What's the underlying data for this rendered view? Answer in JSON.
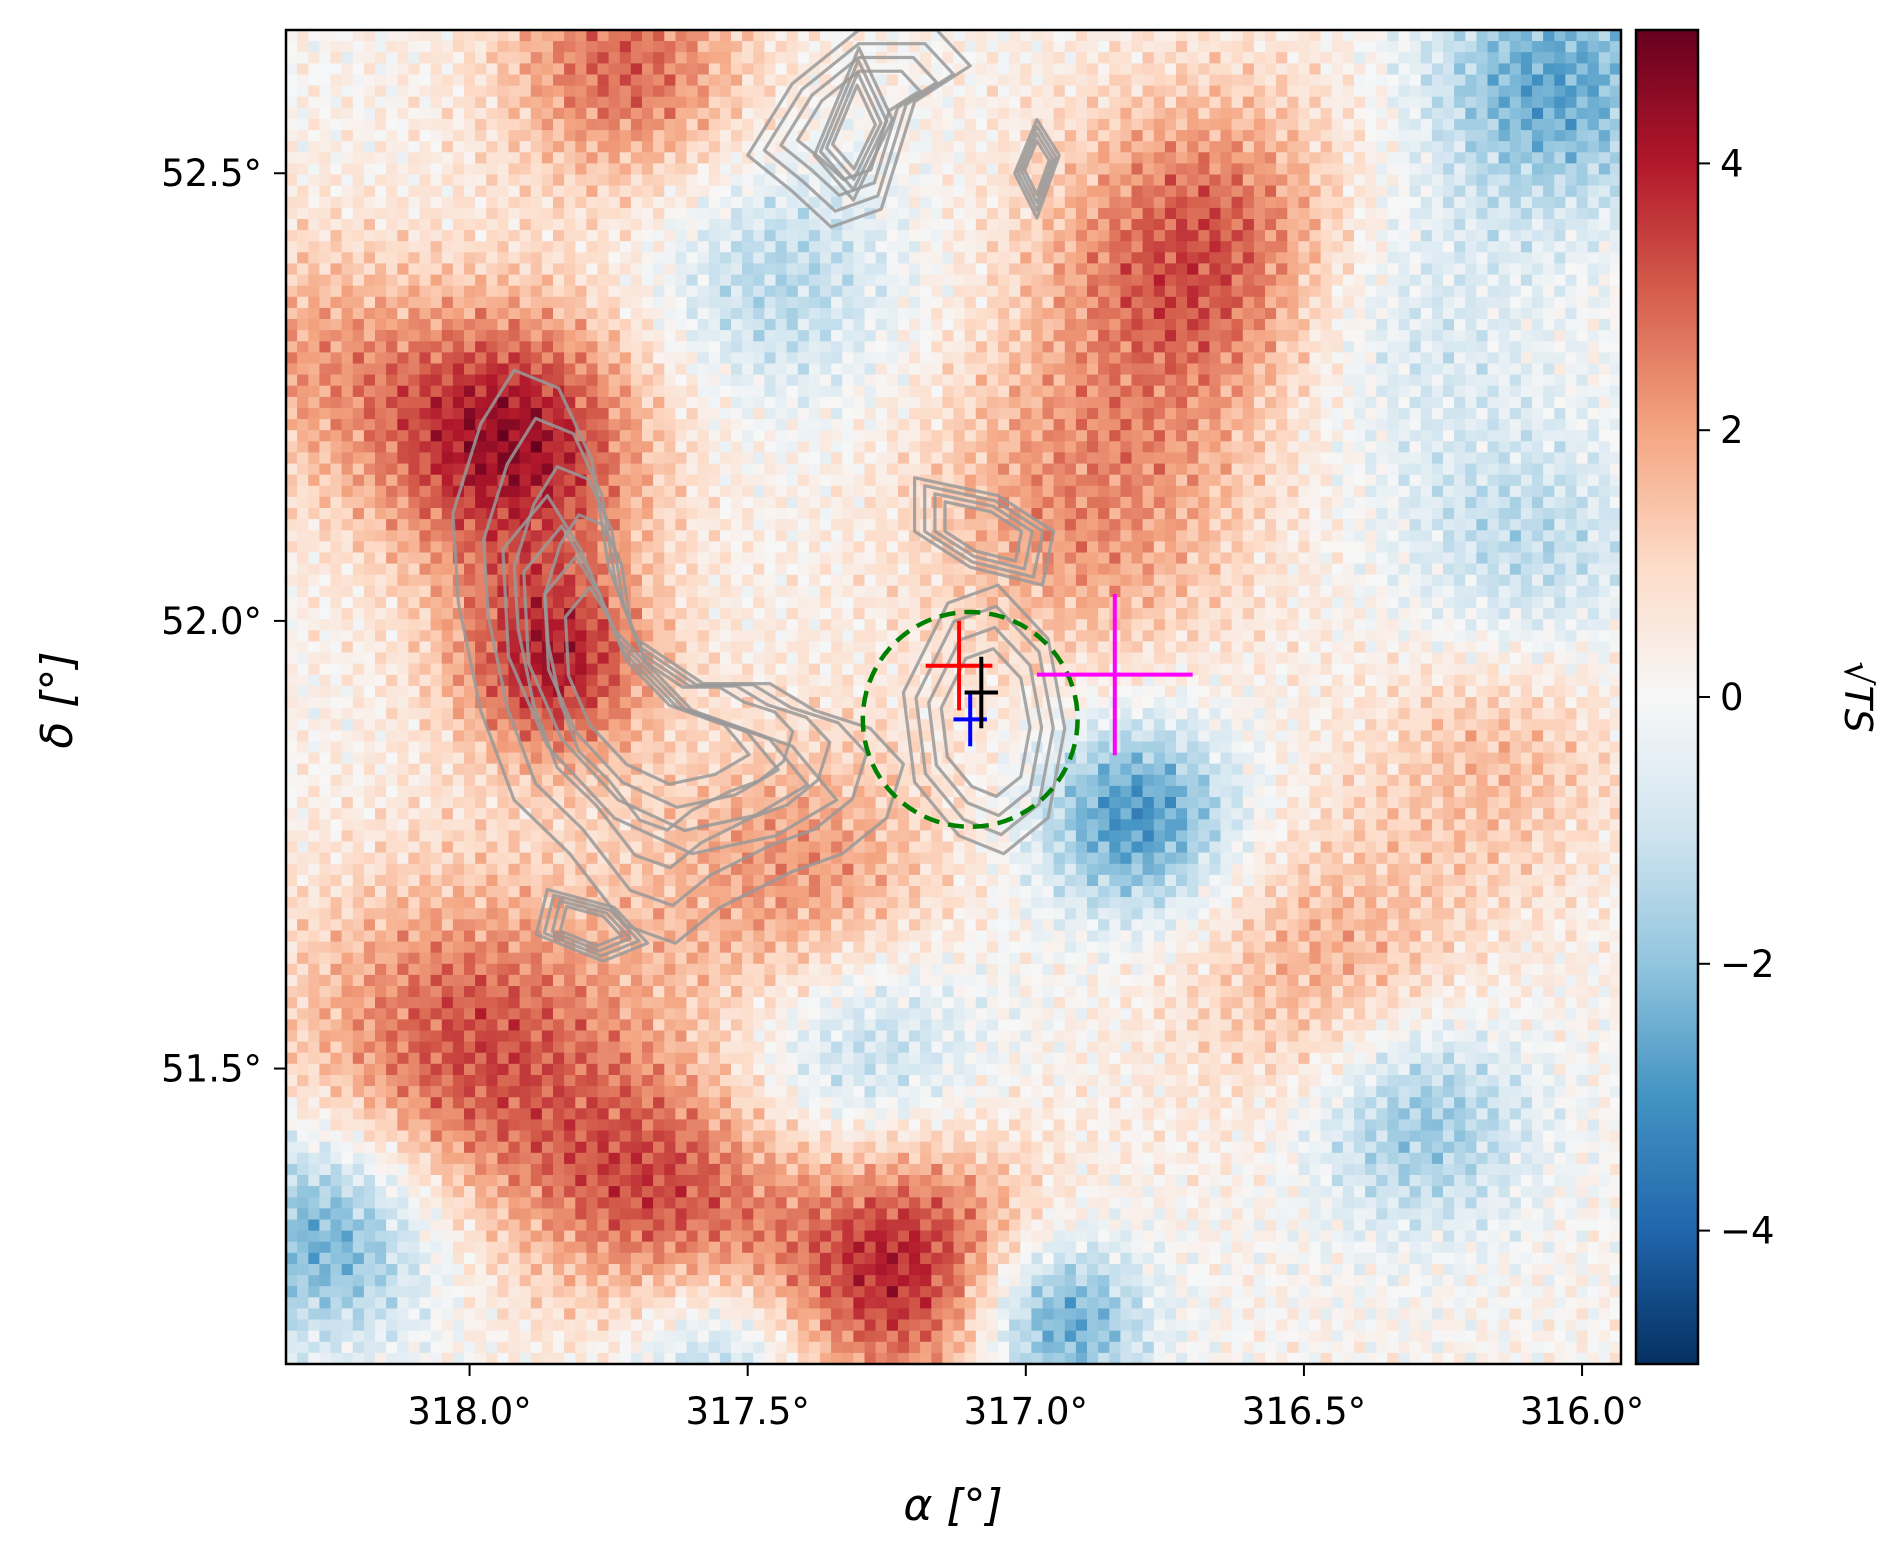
{
  "chart_data": {
    "type": "heatmap",
    "title": "",
    "xlabel": "α [°]",
    "ylabel": "δ [°]",
    "xlim": [
      318.33,
      315.93
    ],
    "ylim": [
      51.17,
      52.66
    ],
    "x_ticks": [
      318.0,
      317.5,
      317.0,
      316.5,
      316.0
    ],
    "x_tick_labels": [
      "318.0°",
      "317.5°",
      "317.0°",
      "316.5°",
      "316.0°"
    ],
    "y_ticks": [
      52.5,
      52.0,
      51.5
    ],
    "y_tick_labels": [
      "52.5°",
      "52.0°",
      "51.5°"
    ],
    "colorbar": {
      "label": "√TS",
      "range": [
        -5,
        5
      ],
      "ticks": [
        4,
        2,
        0,
        -2,
        -4
      ],
      "tick_labels": [
        "4",
        "2",
        "0",
        "−2",
        "−4"
      ],
      "colormap": "RdBu_r",
      "colors": [
        "#053061",
        "#2166ac",
        "#4393c3",
        "#92c5de",
        "#d1e5f0",
        "#f7f7f7",
        "#fddbc7",
        "#f4a582",
        "#d6604d",
        "#b2182b",
        "#67001f"
      ]
    },
    "hotspots": [
      {
        "ra": 317.93,
        "dec": 52.2,
        "sqrt_ts": 4.2,
        "sigma": 0.11
      },
      {
        "ra": 317.85,
        "dec": 51.95,
        "sqrt_ts": 3.6,
        "sigma": 0.08
      },
      {
        "ra": 316.65,
        "dec": 52.4,
        "sqrt_ts": 3.7,
        "sigma": 0.13
      },
      {
        "ra": 317.22,
        "dec": 51.28,
        "sqrt_ts": 3.9,
        "sigma": 0.11
      },
      {
        "ra": 317.72,
        "dec": 52.62,
        "sqrt_ts": 2.8,
        "sigma": 0.1
      },
      {
        "ra": 318.0,
        "dec": 51.52,
        "sqrt_ts": 3.1,
        "sigma": 0.14
      },
      {
        "ra": 317.65,
        "dec": 51.36,
        "sqrt_ts": 2.6,
        "sigma": 0.1
      },
      {
        "ra": 317.4,
        "dec": 51.7,
        "sqrt_ts": 2.3,
        "sigma": 0.12
      },
      {
        "ra": 316.9,
        "dec": 52.12,
        "sqrt_ts": 2.1,
        "sigma": 0.13
      },
      {
        "ra": 316.45,
        "dec": 51.6,
        "sqrt_ts": 1.8,
        "sigma": 0.12
      },
      {
        "ra": 318.3,
        "dec": 52.3,
        "sqrt_ts": 1.6,
        "sigma": 0.1
      },
      {
        "ra": 316.15,
        "dec": 51.85,
        "sqrt_ts": 1.4,
        "sigma": 0.1
      },
      {
        "ra": 316.8,
        "dec": 51.78,
        "sqrt_ts": -3.3,
        "sigma": 0.08
      },
      {
        "ra": 316.95,
        "dec": 51.22,
        "sqrt_ts": -3.5,
        "sigma": 0.07
      },
      {
        "ra": 318.25,
        "dec": 51.32,
        "sqrt_ts": -3.0,
        "sigma": 0.09
      },
      {
        "ra": 316.05,
        "dec": 52.6,
        "sqrt_ts": -2.8,
        "sigma": 0.1
      },
      {
        "ra": 316.4,
        "dec": 52.35,
        "sqrt_ts": -1.8,
        "sigma": 0.12
      },
      {
        "ra": 317.3,
        "dec": 51.52,
        "sqrt_ts": -2.2,
        "sigma": 0.1
      },
      {
        "ra": 316.3,
        "dec": 51.45,
        "sqrt_ts": -2.5,
        "sigma": 0.09
      },
      {
        "ra": 317.45,
        "dec": 52.38,
        "sqrt_ts": -1.6,
        "sigma": 0.1
      },
      {
        "ra": 316.1,
        "dec": 52.08,
        "sqrt_ts": -1.5,
        "sigma": 0.1
      },
      {
        "ra": 317.55,
        "dec": 51.18,
        "sqrt_ts": -2.0,
        "sigma": 0.07
      }
    ],
    "markers": [
      {
        "name": "red",
        "color": "#ff0000",
        "ra": 317.12,
        "dec": 51.95,
        "xerr": 0.06,
        "yerr": 0.05
      },
      {
        "name": "blue",
        "color": "#0000ff",
        "ra": 317.1,
        "dec": 51.89,
        "xerr": 0.03,
        "yerr": 0.03
      },
      {
        "name": "black",
        "color": "#000000",
        "ra": 317.08,
        "dec": 51.92,
        "xerr": 0.03,
        "yerr": 0.04
      },
      {
        "name": "magenta",
        "color": "#ff00ff",
        "ra": 316.84,
        "dec": 51.94,
        "xerr": 0.14,
        "yerr": 0.09
      }
    ],
    "circle": {
      "color": "#008000",
      "style": "dashed",
      "ra": 317.1,
      "dec": 51.89,
      "radius_deg": 0.12
    },
    "contours": {
      "color": "#999999",
      "regions": [
        {
          "name": "western-arc",
          "points": [
            [
              317.98,
              52.22
            ],
            [
              317.92,
              52.28
            ],
            [
              317.84,
              52.26
            ],
            [
              317.78,
              52.18
            ],
            [
              317.75,
              52.06
            ],
            [
              317.7,
              51.98
            ],
            [
              317.58,
              51.93
            ],
            [
              317.46,
              51.93
            ],
            [
              317.38,
              51.9
            ],
            [
              317.28,
              51.88
            ],
            [
              317.22,
              51.84
            ],
            [
              317.25,
              51.78
            ],
            [
              317.33,
              51.74
            ],
            [
              317.42,
              51.72
            ],
            [
              317.55,
              51.68
            ],
            [
              317.63,
              51.64
            ],
            [
              317.72,
              51.66
            ],
            [
              317.82,
              51.74
            ],
            [
              317.92,
              51.8
            ],
            [
              317.98,
              51.9
            ],
            [
              318.02,
              52.02
            ],
            [
              318.03,
              52.12
            ]
          ]
        },
        {
          "name": "inner-ring",
          "points": [
            [
              317.86,
              52.14
            ],
            [
              317.8,
              52.08
            ],
            [
              317.74,
              51.99
            ],
            [
              317.6,
              51.9
            ],
            [
              317.42,
              51.86
            ],
            [
              317.34,
              51.8
            ],
            [
              317.45,
              51.76
            ],
            [
              317.6,
              51.74
            ],
            [
              317.74,
              51.78
            ],
            [
              317.86,
              51.86
            ],
            [
              317.93,
              51.96
            ],
            [
              317.94,
              52.08
            ]
          ]
        },
        {
          "name": "core-source",
          "points": [
            [
              317.14,
              52.02
            ],
            [
              317.05,
              52.04
            ],
            [
              316.96,
              51.98
            ],
            [
              316.93,
              51.88
            ],
            [
              316.96,
              51.78
            ],
            [
              317.04,
              51.74
            ],
            [
              317.12,
              51.76
            ],
            [
              317.2,
              51.82
            ],
            [
              317.22,
              51.92
            ]
          ]
        },
        {
          "name": "northern-ridge",
          "points": [
            [
              317.5,
              52.52
            ],
            [
              317.42,
              52.48
            ],
            [
              317.35,
              52.44
            ],
            [
              317.26,
              52.46
            ],
            [
              317.2,
              52.58
            ],
            [
              317.1,
              52.62
            ],
            [
              317.16,
              52.66
            ],
            [
              317.3,
              52.66
            ],
            [
              317.42,
              52.6
            ]
          ]
        },
        {
          "name": "northern-core",
          "points": [
            [
              317.3,
              52.64
            ],
            [
              317.24,
              52.56
            ],
            [
              317.31,
              52.47
            ],
            [
              317.38,
              52.52
            ]
          ]
        },
        {
          "name": "northeast-filament",
          "points": [
            [
              316.98,
              52.56
            ],
            [
              316.94,
              52.52
            ],
            [
              316.98,
              52.45
            ],
            [
              317.02,
              52.5
            ]
          ]
        },
        {
          "name": "central-ring",
          "points": [
            [
              317.2,
              52.16
            ],
            [
              317.05,
              52.14
            ],
            [
              316.95,
              52.1
            ],
            [
              316.97,
              52.04
            ],
            [
              317.1,
              52.06
            ],
            [
              317.2,
              52.1
            ]
          ]
        },
        {
          "name": "southwest-clump",
          "points": [
            [
              317.86,
              51.7
            ],
            [
              317.74,
              51.68
            ],
            [
              317.68,
              51.64
            ],
            [
              317.76,
              51.62
            ],
            [
              317.88,
              51.65
            ]
          ]
        }
      ]
    }
  }
}
